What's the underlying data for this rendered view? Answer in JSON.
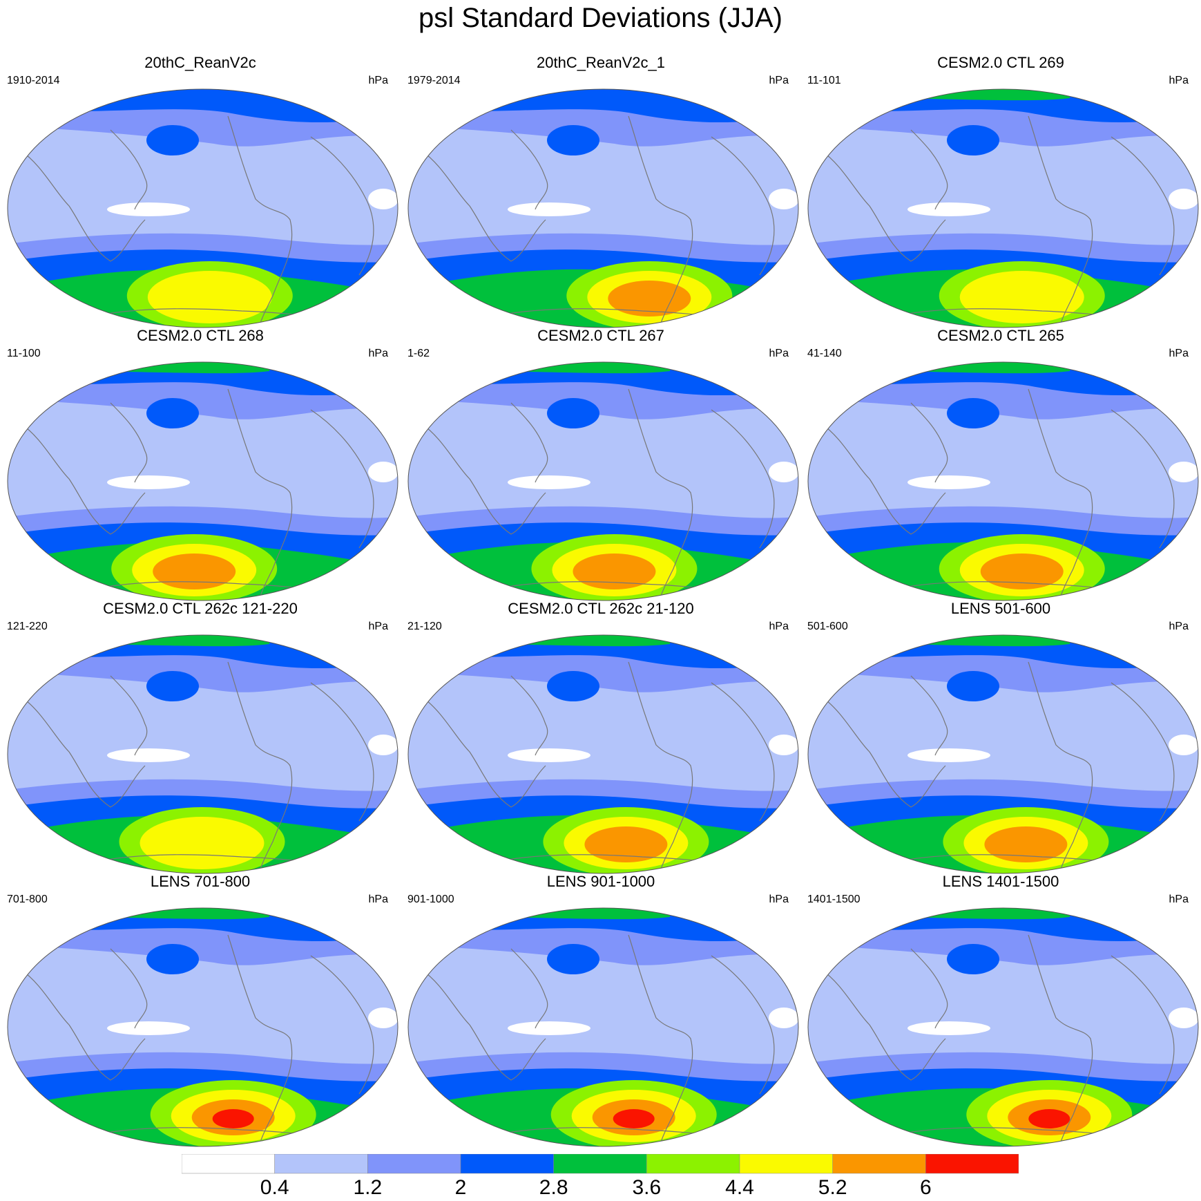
{
  "title": "psl Standard Deviations (JJA)",
  "colors": {
    "ocean_outline": "#555555",
    "coast": "#777777",
    "levels": [
      "#ffffff",
      "#b3c4fa",
      "#8094fa",
      "#0059fa",
      "#00c03c",
      "#8cf200",
      "#fafa00",
      "#fa9600",
      "#fa1400"
    ]
  },
  "colorbar": {
    "labels": [
      "0.4",
      "1.2",
      "2",
      "2.8",
      "3.6",
      "4.4",
      "5.2",
      "6"
    ]
  },
  "panels": [
    {
      "title": "20thC_ReanV2c",
      "left_label": "1910-2014",
      "right_label": "hPa",
      "max_level": 6,
      "max_center": 0.52,
      "arctic_green": false
    },
    {
      "title": "20thC_ReanV2c_1",
      "left_label": "1979-2014",
      "right_label": "hPa",
      "max_level": 7,
      "max_center": 0.62,
      "arctic_green": false
    },
    {
      "title": "CESM2.0 CTL 269",
      "left_label": "11-101",
      "right_label": "hPa",
      "max_level": 6,
      "max_center": 0.55,
      "arctic_green": true
    },
    {
      "title": "CESM2.0 CTL 268",
      "left_label": "11-100",
      "right_label": "hPa",
      "max_level": 7,
      "max_center": 0.48,
      "arctic_green": true
    },
    {
      "title": "CESM2.0 CTL 267",
      "left_label": "1-62",
      "right_label": "hPa",
      "max_level": 7,
      "max_center": 0.53,
      "arctic_green": true
    },
    {
      "title": "CESM2.0 CTL 265",
      "left_label": "41-140",
      "right_label": "hPa",
      "max_level": 7,
      "max_center": 0.55,
      "arctic_green": true
    },
    {
      "title": "CESM2.0 CTL 262c 121-220",
      "left_label": "121-220",
      "right_label": "hPa",
      "max_level": 6,
      "max_center": 0.5,
      "arctic_green": true
    },
    {
      "title": "CESM2.0 CTL 262c 21-120",
      "left_label": "21-120",
      "right_label": "hPa",
      "max_level": 7,
      "max_center": 0.56,
      "arctic_green": true
    },
    {
      "title": "LENS 501-600",
      "left_label": "501-600",
      "right_label": "hPa",
      "max_level": 7,
      "max_center": 0.56,
      "arctic_green": true
    },
    {
      "title": "LENS 701-800",
      "left_label": "701-800",
      "right_label": "hPa",
      "max_level": 8,
      "max_center": 0.58,
      "arctic_green": true
    },
    {
      "title": "LENS 901-1000",
      "left_label": "901-1000",
      "right_label": "hPa",
      "max_level": 8,
      "max_center": 0.58,
      "arctic_green": true
    },
    {
      "title": "LENS 1401-1500",
      "left_label": "1401-1500",
      "right_label": "hPa",
      "max_level": 8,
      "max_center": 0.62,
      "arctic_green": true
    }
  ]
}
